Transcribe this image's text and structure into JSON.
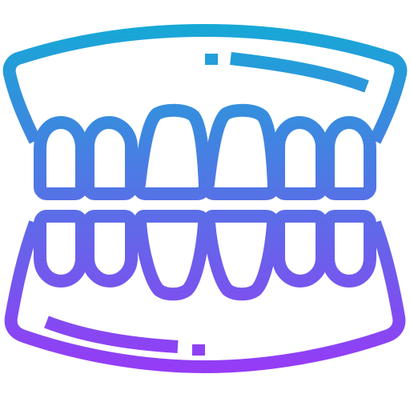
{
  "icon": {
    "name": "dentures-icon",
    "gradient_start": "#16a9d6",
    "gradient_end": "#9a37f7"
  }
}
